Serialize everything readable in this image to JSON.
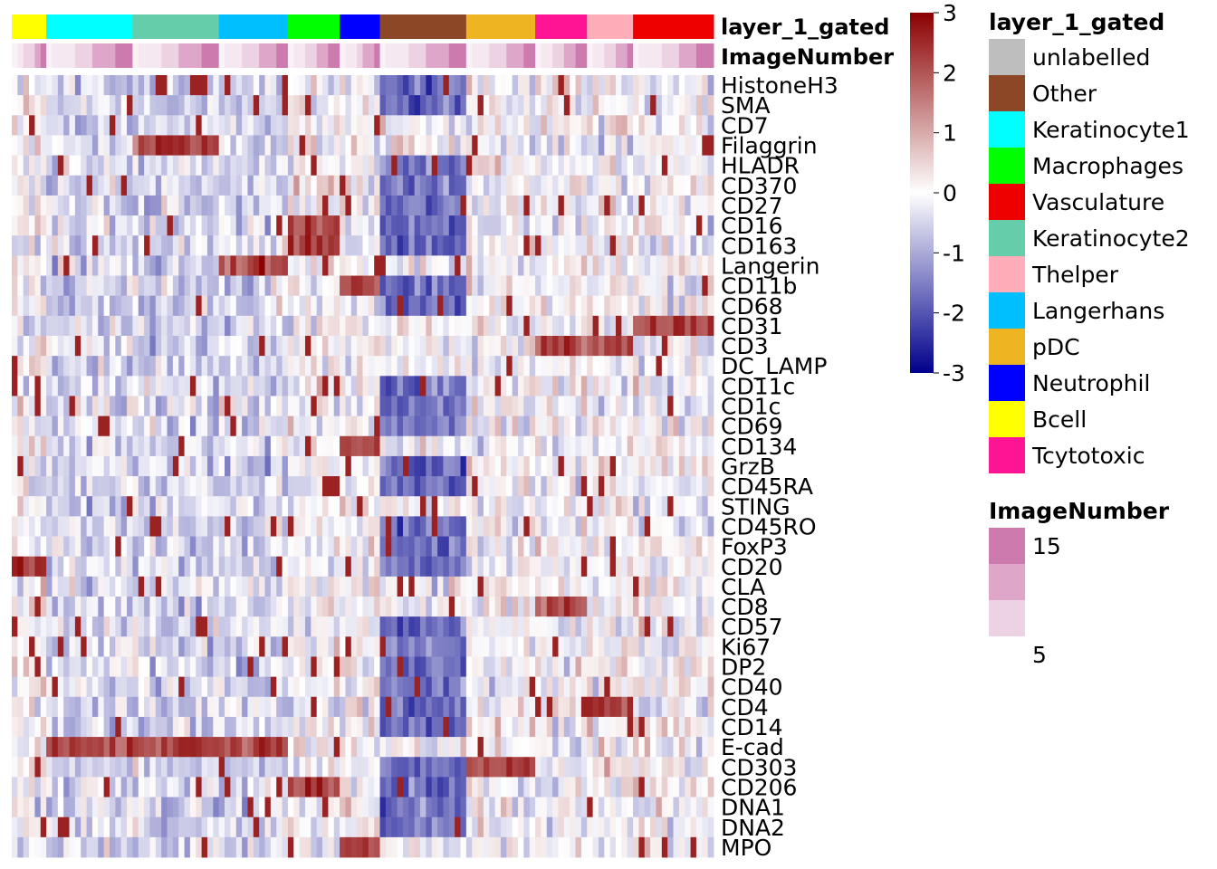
{
  "chart_data": {
    "type": "heatmap",
    "annotations": [
      {
        "title": "layer_1_gated"
      },
      {
        "title": "ImageNumber"
      }
    ],
    "rows": [
      "HistoneH3",
      "SMA",
      "CD7",
      "Filaggrin",
      "HLADR",
      "CD370",
      "CD27",
      "CD16",
      "CD163",
      "Langerin",
      "CD11b",
      "CD68",
      "CD31",
      "CD3",
      "DC_LAMP",
      "CD11c",
      "CD1c",
      "CD69",
      "CD134",
      "GrzB",
      "CD45RA",
      "STING",
      "CD45RO",
      "FoxP3",
      "CD20",
      "CLA",
      "CD8",
      "CD57",
      "Ki67",
      "DP2",
      "CD40",
      "CD4",
      "CD14",
      "E-cad",
      "CD303",
      "CD206",
      "DNA1",
      "DNA2",
      "MPO"
    ],
    "column_groups": [
      {
        "label": "Bcell",
        "color": "#FFFF00",
        "n": 6
      },
      {
        "label": "Keratinocyte1",
        "color": "#00FFFF",
        "n": 15
      },
      {
        "label": "Keratinocyte2",
        "color": "#66CDAA",
        "n": 15
      },
      {
        "label": "Langerhans",
        "color": "#00BFFF",
        "n": 12
      },
      {
        "label": "Macrophages",
        "color": "#00FF00",
        "n": 9
      },
      {
        "label": "Neutrophil",
        "color": "#0000FF",
        "n": 7
      },
      {
        "label": "Other",
        "color": "#8B4726",
        "n": 15
      },
      {
        "label": "pDC",
        "color": "#EEB422",
        "n": 12
      },
      {
        "label": "Tcytotoxic",
        "color": "#FF1493",
        "n": 9
      },
      {
        "label": "Thelper",
        "color": "#FFAEB9",
        "n": 8
      },
      {
        "label": "Vasculature",
        "color": "#EE0000",
        "n": 14
      }
    ],
    "high_markers": {
      "Bcell": [
        "CD20"
      ],
      "Keratinocyte2": [
        "Filaggrin",
        "E-cad"
      ],
      "Keratinocyte1": [
        "E-cad"
      ],
      "Langerhans": [
        "Langerin",
        "E-cad"
      ],
      "Macrophages": [
        "CD16",
        "CD163",
        "CD206"
      ],
      "Neutrophil": [
        "CD134",
        "MPO",
        "CD11b"
      ],
      "pDC": [
        "CD303"
      ],
      "Tcytotoxic": [
        "CD8",
        "CD3"
      ],
      "Thelper": [
        "CD3",
        "CD4"
      ],
      "Vasculature": [
        "CD31"
      ]
    },
    "low_markers": {
      "Other": [
        "HistoneH3",
        "SMA",
        "HLADR",
        "CD370",
        "CD27",
        "CD16",
        "CD163",
        "CD11b",
        "CD68",
        "CD11c",
        "CD1c",
        "CD69",
        "GrzB",
        "CD45RA",
        "CD45RO",
        "FoxP3",
        "CD20",
        "CD57",
        "Ki67",
        "DP2",
        "CD40",
        "CD4",
        "CD14",
        "CD303",
        "CD206",
        "DNA1",
        "DNA2"
      ]
    },
    "color_scale": {
      "min": -3,
      "max": 3,
      "stops": [
        {
          "value": -3,
          "color": "#00008B"
        },
        {
          "value": 0,
          "color": "#FFFFFF"
        },
        {
          "value": 3,
          "color": "#8B0000"
        }
      ],
      "ticks": [
        "3",
        "2",
        "1",
        "0",
        "-1",
        "-2",
        "-3"
      ]
    },
    "legend_layer": {
      "title": "layer_1_gated",
      "items": [
        {
          "label": "unlabelled",
          "color": "#BEBEBE"
        },
        {
          "label": "Other",
          "color": "#8B4726"
        },
        {
          "label": "Keratinocyte1",
          "color": "#00FFFF"
        },
        {
          "label": "Macrophages",
          "color": "#00FF00"
        },
        {
          "label": "Vasculature",
          "color": "#EE0000"
        },
        {
          "label": "Keratinocyte2",
          "color": "#66CDAA"
        },
        {
          "label": "Thelper",
          "color": "#FFAEB9"
        },
        {
          "label": "Langerhans",
          "color": "#00BFFF"
        },
        {
          "label": "pDC",
          "color": "#EEB422"
        },
        {
          "label": "Neutrophil",
          "color": "#0000FF"
        },
        {
          "label": "Bcell",
          "color": "#FFFF00"
        },
        {
          "label": "Tcytotoxic",
          "color": "#FF1493"
        }
      ]
    },
    "legend_image": {
      "title": "ImageNumber",
      "colors": [
        "#CD7BAE",
        "#DEA6C8",
        "#EDD2E3"
      ],
      "labels": [
        "15",
        "5"
      ]
    }
  }
}
